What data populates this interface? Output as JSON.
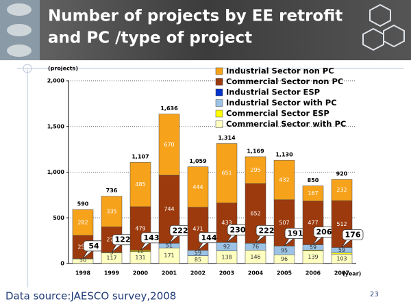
{
  "slide": {
    "title_line1": "Number of projects by EE retrofit",
    "title_line2": "and PC /type of project",
    "footer": "Data source:JAESCO survey,2008",
    "page_number": "23"
  },
  "chart_data": {
    "type": "bar",
    "stacked": true,
    "y_axis_label": "(projects)",
    "x_axis_label": "(year)",
    "categories": [
      "1998",
      "1999",
      "2000",
      "2001",
      "2002",
      "2003",
      "2004",
      "2005",
      "2006",
      "2007"
    ],
    "ylim": [
      0,
      2000
    ],
    "yticks": [
      0,
      500,
      {
        "value": 1000,
        "label": "1,000"
      },
      {
        "value": 1500,
        "label": "1,500"
      },
      {
        "value": 2000,
        "label": "2,000"
      }
    ],
    "grid": true,
    "series": [
      {
        "name": "Commercial Sector with PC",
        "color": "#ffffc0",
        "values": [
          50,
          117,
          131,
          171,
          85,
          138,
          146,
          96,
          139,
          103
        ],
        "value_labels": [
          "50",
          "117",
          "131",
          "171",
          "85",
          "138",
          "146",
          "96",
          "139",
          "103"
        ]
      },
      {
        "name": "Commercial Sector ESP",
        "color": "#ffff00",
        "values": [
          0,
          5,
          12,
          0,
          0,
          0,
          0,
          0,
          8,
          14
        ],
        "value_labels": [
          null,
          "5",
          "12",
          null,
          null,
          null,
          null,
          null,
          null,
          null
        ]
      },
      {
        "name": "Industrial Sector with PC",
        "color": "#9cc3e6",
        "values": [
          4,
          0,
          0,
          51,
          59,
          92,
          76,
          95,
          59,
          59
        ],
        "value_labels": [
          null,
          null,
          null,
          "51",
          "59",
          "92",
          "76",
          "95",
          "59",
          "59"
        ]
      },
      {
        "name": "Industrial Sector ESP",
        "color": "#0033cc",
        "values": [
          0,
          0,
          0,
          0,
          0,
          0,
          0,
          0,
          0,
          0
        ],
        "value_labels": [
          null,
          null,
          null,
          null,
          null,
          null,
          null,
          null,
          null,
          null
        ]
      },
      {
        "name": "Commercial Sector non PC",
        "color": "#9c3a0e",
        "values": [
          254,
          279,
          479,
          744,
          471,
          433,
          652,
          507,
          477,
          512
        ],
        "value_labels": [
          "254",
          "279",
          "479",
          "744",
          "471",
          "433",
          "652",
          "507",
          "477",
          "512"
        ]
      },
      {
        "name": "Industrial Sector non PC",
        "color": "#f7a21b",
        "values": [
          282,
          335,
          485,
          670,
          444,
          651,
          295,
          432,
          167,
          232
        ],
        "value_labels": [
          "282",
          "335",
          "485",
          "670",
          "444",
          "651",
          "295",
          "432",
          "167",
          "232"
        ]
      }
    ],
    "totals": [
      590,
      736,
      {
        "value": 1107,
        "label": "1,107"
      },
      {
        "value": 1636,
        "label": "1,636"
      },
      {
        "value": 1059,
        "label": "1,059"
      },
      {
        "value": 1314,
        "label": "1,314"
      },
      {
        "value": 1169,
        "label": "1,169"
      },
      {
        "value": 1130,
        "label": "1,130"
      },
      850,
      920
    ],
    "pc_totals": [
      54,
      122,
      143,
      222,
      144,
      230,
      222,
      191,
      206,
      176
    ]
  }
}
